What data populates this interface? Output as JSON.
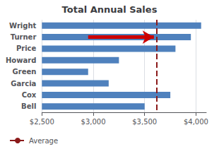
{
  "chart_data": {
    "type": "bar",
    "orientation": "horizontal",
    "title": "Total Annual Sales",
    "categories": [
      "Wright",
      "Turner",
      "Price",
      "Howard",
      "Green",
      "Garcia",
      "Cox",
      "Bell"
    ],
    "values": [
      4050,
      3950,
      3800,
      3250,
      2950,
      3150,
      3750,
      3500
    ],
    "color": "#4f81bd",
    "xlim": [
      2500,
      4100
    ],
    "xticks": [
      {
        "value": 2500,
        "label": "$2,500"
      },
      {
        "value": 3000,
        "label": "$3,000"
      },
      {
        "value": 3500,
        "label": "$3,500"
      },
      {
        "value": 4000,
        "label": "$4,000"
      }
    ],
    "grid": true,
    "legend": "lower left",
    "reference_line": {
      "name": "Average",
      "value": 3620,
      "color": "#8b1a1a",
      "line_style": "dashed"
    },
    "annotations": [
      {
        "type": "arrow",
        "x_start": 2950,
        "x_end": 3590,
        "category": "Turner",
        "color": "#cc0000"
      }
    ]
  }
}
